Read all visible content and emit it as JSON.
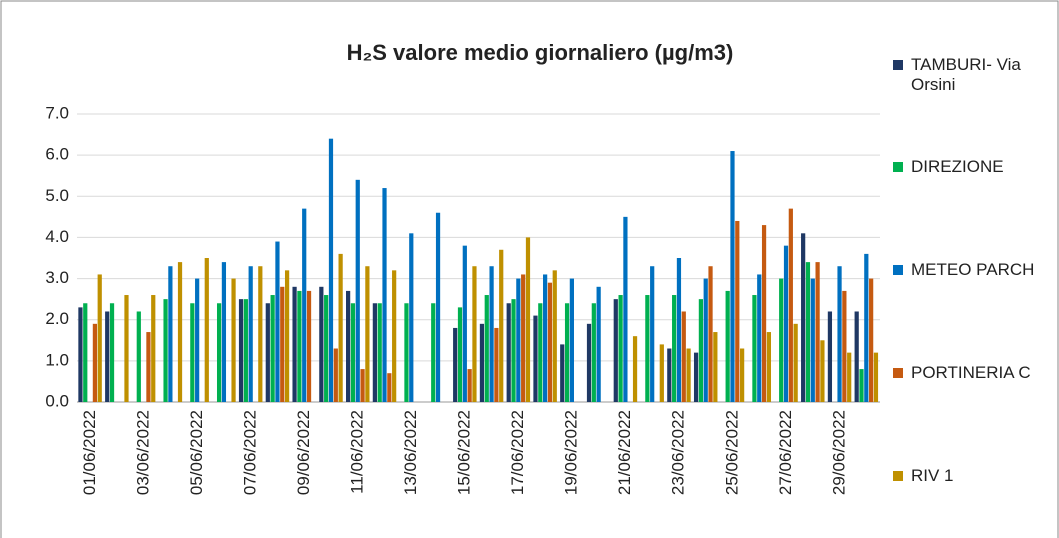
{
  "chart_data": {
    "type": "bar",
    "title": "H₂S valore medio giornaliero (µg/m3)",
    "categories": [
      "01/06/2022",
      null,
      "03/06/2022",
      null,
      "05/06/2022",
      null,
      "07/06/2022",
      null,
      "09/06/2022",
      null,
      "11/06/2022",
      null,
      "13/06/2022",
      null,
      "15/06/2022",
      null,
      "17/06/2022",
      null,
      "19/06/2022",
      null,
      "21/06/2022",
      null,
      "23/06/2022",
      null,
      "25/06/2022",
      null,
      "27/06/2022",
      null,
      "29/06/2022",
      null
    ],
    "series": [
      {
        "name": "TAMBURI- Via Orsini",
        "color": "#1f3864",
        "values": [
          2.3,
          2.2,
          null,
          null,
          null,
          null,
          2.5,
          2.4,
          2.8,
          2.8,
          2.7,
          2.4,
          null,
          null,
          1.8,
          1.9,
          2.4,
          2.1,
          1.4,
          1.9,
          2.5,
          null,
          1.3,
          1.2,
          null,
          null,
          null,
          4.1,
          2.2,
          2.2
        ]
      },
      {
        "name": "DIREZIONE",
        "color": "#00b050",
        "values": [
          2.4,
          2.4,
          2.2,
          2.5,
          2.4,
          2.4,
          2.5,
          2.6,
          2.7,
          2.6,
          2.4,
          2.4,
          2.4,
          2.4,
          2.3,
          2.6,
          2.5,
          2.4,
          2.4,
          2.4,
          2.6,
          2.6,
          2.6,
          2.5,
          2.7,
          2.6,
          3.0,
          3.4,
          null,
          0.8
        ]
      },
      {
        "name": "METEO PARCH",
        "color": "#0070c0",
        "values": [
          null,
          null,
          null,
          3.3,
          3.0,
          3.4,
          3.3,
          3.9,
          4.7,
          6.4,
          5.4,
          5.2,
          4.1,
          4.6,
          3.8,
          3.3,
          3.0,
          3.1,
          3.0,
          2.8,
          4.5,
          3.3,
          3.5,
          3.0,
          6.1,
          3.1,
          3.8,
          3.0,
          3.3,
          3.6
        ]
      },
      {
        "name": "PORTINERIA C",
        "color": "#c55a11",
        "values": [
          1.9,
          null,
          1.7,
          null,
          null,
          null,
          null,
          2.8,
          2.7,
          1.3,
          0.8,
          0.7,
          null,
          null,
          0.8,
          1.8,
          3.1,
          2.9,
          null,
          null,
          null,
          null,
          2.2,
          3.3,
          4.4,
          4.3,
          4.7,
          3.4,
          2.7,
          3.0
        ]
      },
      {
        "name": "RIV 1",
        "color": "#bf9000",
        "values": [
          3.1,
          2.6,
          2.6,
          3.4,
          3.5,
          3.0,
          3.3,
          3.2,
          null,
          3.6,
          3.3,
          3.2,
          null,
          null,
          3.3,
          3.7,
          4.0,
          3.2,
          null,
          null,
          1.6,
          1.4,
          1.3,
          1.7,
          1.3,
          1.7,
          1.9,
          1.5,
          1.2,
          1.2
        ]
      }
    ],
    "ylim": [
      0,
      7
    ],
    "yticks": [
      {
        "value": 0,
        "label": "0.0"
      },
      {
        "value": 1,
        "label": "1.0"
      },
      {
        "value": 2,
        "label": "2.0"
      },
      {
        "value": 3,
        "label": "3.0"
      },
      {
        "value": 4,
        "label": "4.0"
      },
      {
        "value": 5,
        "label": "5.0"
      },
      {
        "value": 6,
        "label": "6.0"
      },
      {
        "value": 7,
        "label": "7.0"
      }
    ],
    "grid": true,
    "legend": "right"
  }
}
